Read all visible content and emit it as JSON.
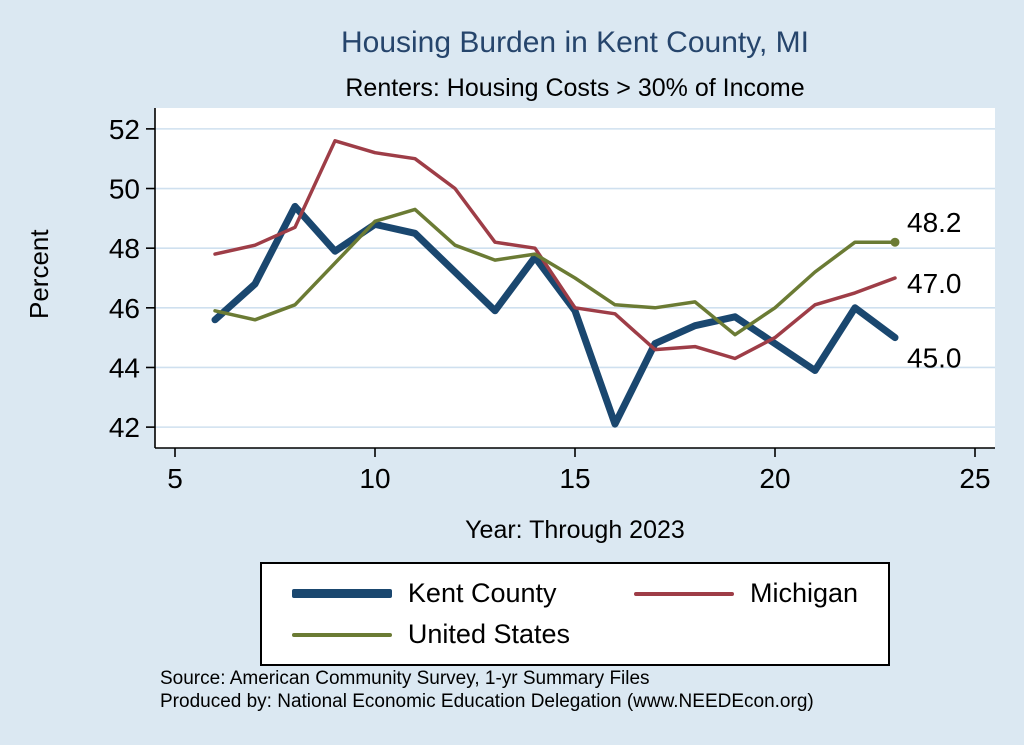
{
  "chart_data": {
    "type": "line",
    "title": "Housing Burden in Kent County, MI",
    "subtitle": "Renters: Housing Costs > 30% of Income",
    "xlabel": "Year: Through 2023",
    "ylabel": "Percent",
    "xlim": [
      4.5,
      25.5
    ],
    "ylim": [
      41.3,
      52.7
    ],
    "xticks": [
      5,
      10,
      15,
      20,
      25
    ],
    "yticks": [
      42,
      44,
      46,
      48,
      50,
      52
    ],
    "grid": "horizontal",
    "legend_position": "bottom",
    "background_color": "#dbe8f2",
    "plot_background_color": "#ffffff",
    "grid_color": "#cfe0ef",
    "title_color": "#26456c",
    "x": [
      6,
      7,
      8,
      9,
      10,
      11,
      12,
      13,
      14,
      15,
      16,
      17,
      18,
      19,
      20,
      21,
      22,
      23
    ],
    "series": [
      {
        "name": "Kent County",
        "color": "#1a476f",
        "line_width": 7,
        "end_label": "45.0",
        "end_marker": false,
        "values": [
          45.6,
          46.8,
          49.4,
          47.9,
          48.8,
          48.5,
          47.2,
          45.9,
          47.7,
          45.9,
          42.1,
          44.8,
          45.4,
          45.7,
          44.8,
          43.9,
          46.0,
          45.0
        ]
      },
      {
        "name": "Michigan",
        "color": "#9e3d47",
        "line_width": 3.5,
        "end_label": "47.0",
        "end_marker": false,
        "values": [
          47.8,
          48.1,
          48.7,
          51.6,
          51.2,
          51.0,
          50.0,
          48.2,
          48.0,
          46.0,
          45.8,
          44.6,
          44.7,
          44.3,
          45.0,
          46.1,
          46.5,
          47.0
        ]
      },
      {
        "name": "United States",
        "color": "#6b7b34",
        "line_width": 3.5,
        "end_label": "48.2",
        "end_marker": true,
        "values": [
          45.9,
          45.6,
          46.1,
          47.5,
          48.9,
          49.3,
          48.1,
          47.6,
          47.8,
          47.0,
          46.1,
          46.0,
          46.2,
          45.1,
          46.0,
          47.2,
          48.2,
          48.2
        ]
      }
    ]
  },
  "notes": {
    "source": "Source: American Community Survey, 1-yr Summary Files",
    "produced_by": "Produced by: National Economic Education Delegation (www.NEEDEcon.org)"
  }
}
